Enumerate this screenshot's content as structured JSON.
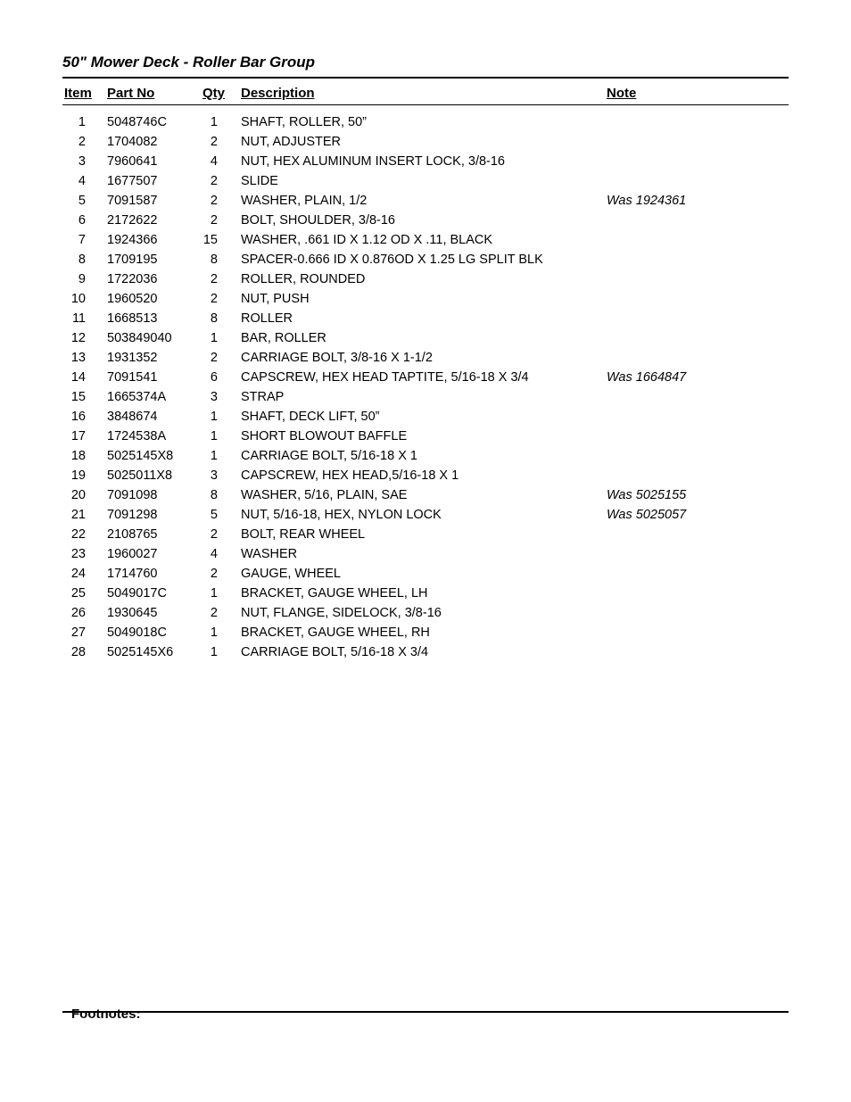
{
  "title": "50\" Mower Deck - Roller Bar Group",
  "headers": {
    "item": "Item",
    "partno": "Part No",
    "qty": "Qty",
    "description": "Description",
    "note": "Note"
  },
  "footnotes_label": "Footnotes:",
  "rows": [
    {
      "item": "1",
      "partno": "5048746C",
      "qty": "1",
      "description": "SHAFT, ROLLER, 50”",
      "note": ""
    },
    {
      "item": "2",
      "partno": "1704082",
      "qty": "2",
      "description": "NUT, ADJUSTER",
      "note": ""
    },
    {
      "item": "3",
      "partno": "7960641",
      "qty": "4",
      "description": "NUT, HEX ALUMINUM INSERT LOCK, 3/8-16",
      "note": ""
    },
    {
      "item": "4",
      "partno": "1677507",
      "qty": "2",
      "description": "SLIDE",
      "note": ""
    },
    {
      "item": "5",
      "partno": "7091587",
      "qty": "2",
      "description": "WASHER, PLAIN, 1/2",
      "note": "Was 1924361"
    },
    {
      "item": "6",
      "partno": "2172622",
      "qty": "2",
      "description": "BOLT, SHOULDER, 3/8-16",
      "note": ""
    },
    {
      "item": "7",
      "partno": "1924366",
      "qty": "15",
      "description": "WASHER, .661 ID X 1.12 OD X .11, BLACK",
      "note": ""
    },
    {
      "item": "8",
      "partno": "1709195",
      "qty": "8",
      "description": "SPACER-0.666 ID X 0.876OD X 1.25 LG SPLIT BLK",
      "note": ""
    },
    {
      "item": "9",
      "partno": "1722036",
      "qty": "2",
      "description": "ROLLER, ROUNDED",
      "note": ""
    },
    {
      "item": "10",
      "partno": "1960520",
      "qty": "2",
      "description": "NUT, PUSH",
      "note": ""
    },
    {
      "item": "11",
      "partno": "1668513",
      "qty": "8",
      "description": "ROLLER",
      "note": ""
    },
    {
      "item": "12",
      "partno": "503849040",
      "qty": "1",
      "description": "BAR, ROLLER",
      "note": ""
    },
    {
      "item": "13",
      "partno": "1931352",
      "qty": "2",
      "description": "CARRIAGE BOLT, 3/8-16 X 1-1/2",
      "note": ""
    },
    {
      "item": "14",
      "partno": "7091541",
      "qty": "6",
      "description": "CAPSCREW, HEX HEAD TAPTITE, 5/16-18 X 3/4",
      "note": "Was 1664847"
    },
    {
      "item": "15",
      "partno": "1665374A",
      "qty": "3",
      "description": "STRAP",
      "note": ""
    },
    {
      "item": "16",
      "partno": "3848674",
      "qty": "1",
      "description": "SHAFT, DECK LIFT, 50”",
      "note": ""
    },
    {
      "item": "17",
      "partno": "1724538A",
      "qty": "1",
      "description": "SHORT BLOWOUT BAFFLE",
      "note": ""
    },
    {
      "item": "18",
      "partno": "5025145X8",
      "qty": "1",
      "description": "CARRIAGE BOLT, 5/16-18 X 1",
      "note": ""
    },
    {
      "item": "19",
      "partno": "5025011X8",
      "qty": "3",
      "description": "CAPSCREW, HEX HEAD,5/16-18 X 1",
      "note": ""
    },
    {
      "item": "20",
      "partno": "7091098",
      "qty": "8",
      "description": "WASHER, 5/16, PLAIN, SAE",
      "note": "Was 5025155"
    },
    {
      "item": "21",
      "partno": "7091298",
      "qty": "5",
      "description": "NUT, 5/16-18, HEX, NYLON LOCK",
      "note": "Was 5025057"
    },
    {
      "item": "22",
      "partno": "2108765",
      "qty": "2",
      "description": "BOLT, REAR WHEEL",
      "note": ""
    },
    {
      "item": "23",
      "partno": "1960027",
      "qty": "4",
      "description": "WASHER",
      "note": ""
    },
    {
      "item": "24",
      "partno": "1714760",
      "qty": "2",
      "description": "GAUGE, WHEEL",
      "note": ""
    },
    {
      "item": "25",
      "partno": "5049017C",
      "qty": "1",
      "description": "BRACKET, GAUGE WHEEL, LH",
      "note": ""
    },
    {
      "item": "26",
      "partno": "1930645",
      "qty": "2",
      "description": "NUT, FLANGE, SIDELOCK, 3/8-16",
      "note": ""
    },
    {
      "item": "27",
      "partno": "5049018C",
      "qty": "1",
      "description": "BRACKET, GAUGE WHEEL, RH",
      "note": ""
    },
    {
      "item": "28",
      "partno": "5025145X6",
      "qty": "1",
      "description": "CARRIAGE BOLT, 5/16-18 X 3/4",
      "note": ""
    }
  ]
}
